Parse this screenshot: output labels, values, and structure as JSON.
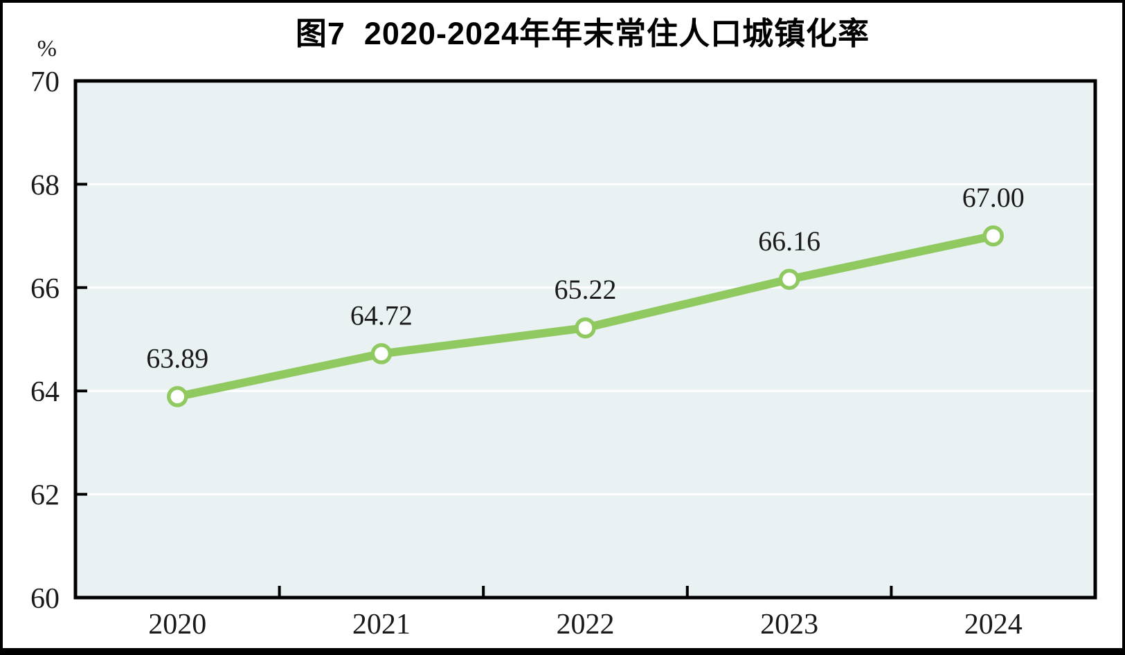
{
  "figure": {
    "title": "图7  2020-2024年年末常住人口城镇化率"
  },
  "chart_data": {
    "type": "line",
    "title": "图7  2020-2024年年末常住人口城镇化率",
    "unit_label": "%",
    "categories": [
      "2020",
      "2021",
      "2022",
      "2023",
      "2024"
    ],
    "values": [
      63.89,
      64.72,
      65.22,
      66.16,
      67.0
    ],
    "data_labels": [
      "63.89",
      "64.72",
      "65.22",
      "66.16",
      "67.00"
    ],
    "ylim": [
      60,
      70
    ],
    "yticks": [
      60,
      62,
      64,
      66,
      68,
      70
    ],
    "grid": "horizontal",
    "legend": "none",
    "colors": {
      "line": "#8FC95F",
      "marker_fill": "#FFFFFF",
      "plot_background": "#E9F1F3",
      "gridline": "#FFFFFF",
      "axis": "#000000",
      "text": "#1A1A1A"
    }
  }
}
